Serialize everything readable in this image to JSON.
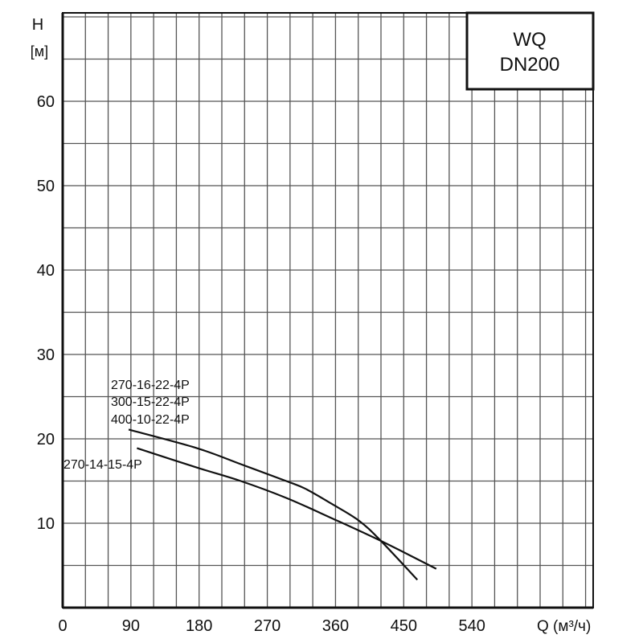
{
  "chart_data": {
    "type": "line",
    "title": [
      "WQ",
      "DN200"
    ],
    "xlabel": "Q (м³/ч)",
    "ylabel": [
      "H",
      "[м]"
    ],
    "xlim": [
      0,
      700
    ],
    "ylim": [
      0,
      70
    ],
    "grid": true,
    "x_grid_step": 30,
    "y_grid_step": 5,
    "xticks": [
      0,
      90,
      180,
      270,
      360,
      450,
      540
    ],
    "yticks": [
      10,
      20,
      30,
      40,
      50,
      60
    ],
    "xtick_labels": [
      "0",
      "90",
      "180",
      "270",
      "360",
      "450",
      "540"
    ],
    "ytick_labels": [
      "10",
      "20",
      "30",
      "40",
      "50",
      "60"
    ],
    "series": [
      {
        "name": "270-16-22-4P / 300-15-22-4P / 400-10-22-4P",
        "labels": [
          "270-16-22-4P",
          "300-15-22-4P",
          "400-10-22-4P"
        ],
        "x": [
          87,
          177,
          235,
          295,
          320,
          355,
          391,
          420,
          468
        ],
        "y": [
          21.1,
          18.9,
          17.0,
          15.0,
          14.1,
          12.3,
          10.3,
          7.9,
          3.3
        ]
      },
      {
        "name": "270-14-15-4P",
        "labels": [
          "270-14-15-4P"
        ],
        "x": [
          98,
          177,
          235,
          295,
          355,
          420,
          493
        ],
        "y": [
          18.9,
          16.6,
          15.0,
          13.0,
          10.6,
          7.9,
          4.6
        ]
      }
    ],
    "colors": {
      "line": "#111111",
      "grid": "#555555",
      "axis": "#111111"
    }
  }
}
